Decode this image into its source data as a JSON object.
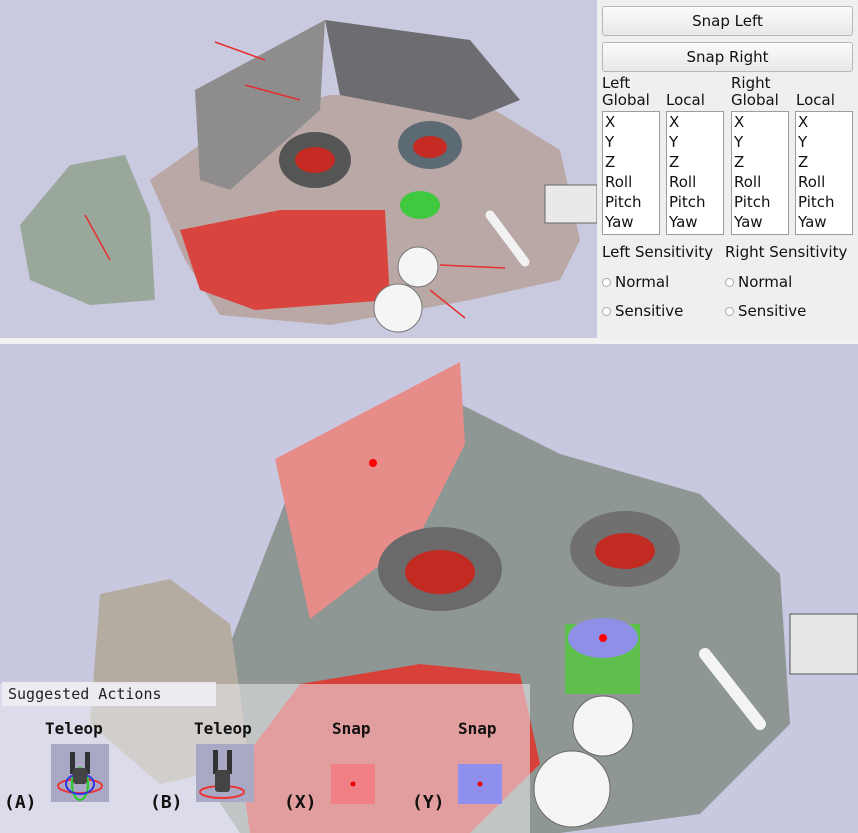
{
  "buttons": {
    "snap_left": "Snap Left",
    "snap_right": "Snap Right"
  },
  "left": {
    "label": "Left",
    "global": "Global",
    "local": "Local"
  },
  "right": {
    "label": "Right",
    "global": "Global",
    "local": "Local"
  },
  "axes": [
    "X",
    "Y",
    "Z",
    "Roll",
    "Pitch",
    "Yaw"
  ],
  "sensitivity": {
    "left_title": "Left Sensitivity",
    "right_title": "Right Sensitivity",
    "options": [
      "Normal",
      "Sensitive"
    ]
  },
  "suggested": {
    "title": "Suggested Actions",
    "actions": [
      {
        "key": "(A)",
        "label": "Teleop",
        "icon": "gripper-gizmo-icon"
      },
      {
        "key": "(B)",
        "label": "Teleop",
        "icon": "gripper-icon"
      },
      {
        "key": "(X)",
        "label": "Snap",
        "icon": "snap-plane-red-icon"
      },
      {
        "key": "(Y)",
        "label": "Snap",
        "icon": "snap-plane-blue-icon"
      }
    ]
  },
  "colors": {
    "snap_red": "#f07f86",
    "snap_blue": "#8f8ff0",
    "marker": "#ff0000"
  }
}
